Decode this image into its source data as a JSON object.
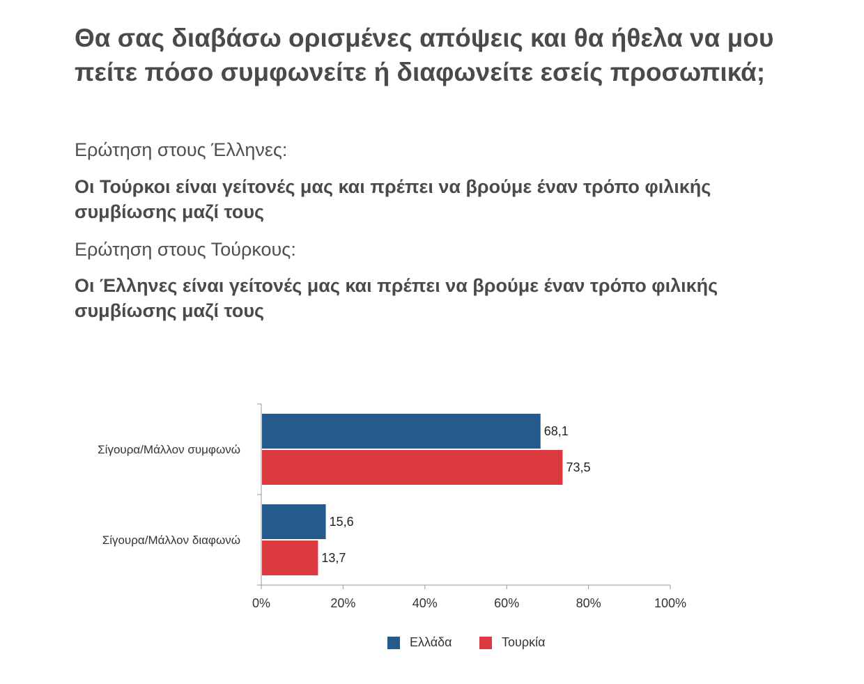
{
  "title": "Θα σας διαβάσω ορισμένες απόψεις και θα ήθελα να μου πείτε πόσο συμφωνείτε ή διαφωνείτε εσείς προσωπικά;",
  "questions": [
    {
      "label": "Ερώτηση στους Έλληνες:",
      "text": "Οι Τούρκοι είναι γείτονές μας και πρέπει να βρούμε έναν τρόπο φιλικής συμβίωσης μαζί τους"
    },
    {
      "label": "Ερώτηση στους Τούρκους:",
      "text": "Οι Έλληνες είναι γείτονές μας και πρέπει να βρούμε έναν τρόπο φιλικής συμβίωσης μαζί τους"
    }
  ],
  "chart_data": {
    "type": "bar",
    "orientation": "horizontal",
    "categories": [
      "Σίγουρα/Μάλλον συμφωνώ",
      "Σίγουρα/Μάλλον διαφωνώ"
    ],
    "series": [
      {
        "name": "Ελλάδα",
        "color": "#255a8c",
        "values": [
          68.1,
          15.6
        ],
        "labels": [
          "68,1",
          "15,6"
        ]
      },
      {
        "name": "Τουρκία",
        "color": "#dc3a40",
        "values": [
          73.5,
          13.7
        ],
        "labels": [
          "73,5",
          "13,7"
        ]
      }
    ],
    "xlim": [
      0,
      100
    ],
    "xticks": [
      "0%",
      "20%",
      "40%",
      "60%",
      "80%",
      "100%"
    ],
    "grid": false,
    "legend": "bottom"
  }
}
